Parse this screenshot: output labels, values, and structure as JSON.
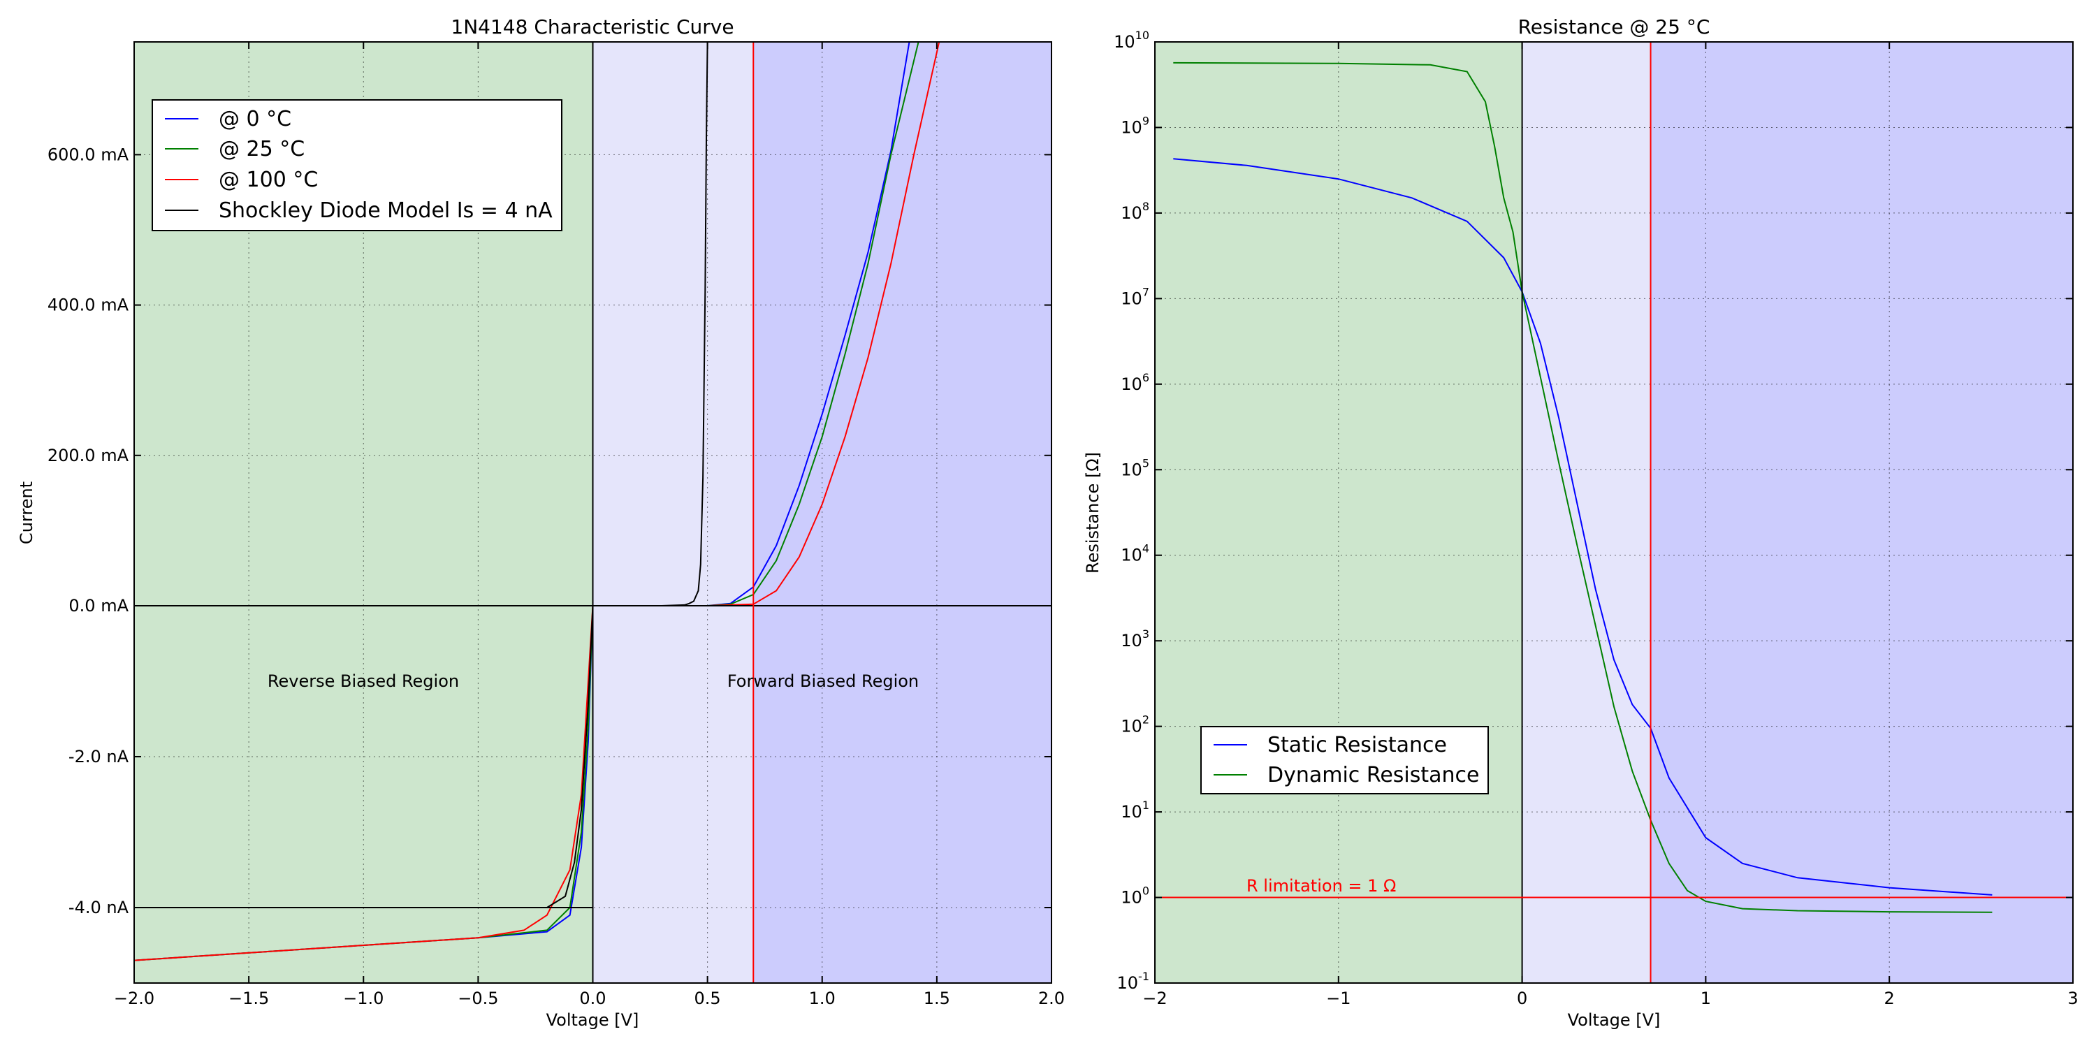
{
  "colors": {
    "blue": "#0000ff",
    "green": "#008000",
    "red": "#ff0000",
    "black": "#000000",
    "green_region": "#cde6cd",
    "lavender_region": "#e5e5fb",
    "blue_region": "#ccccfd"
  },
  "chart_data": [
    {
      "type": "line",
      "title": "1N4148 Characteristic Curve",
      "xlabel": "Voltage [V]",
      "ylabel": "Current",
      "xlim": [
        -2.0,
        2.0
      ],
      "x_ticks": [
        "−2.0",
        "−1.5",
        "−1.0",
        "−0.5",
        "0.0",
        "0.5",
        "1.0",
        "1.5",
        "2.0"
      ],
      "y_ticks": [
        "600.0 mA",
        "400.0 mA",
        "200.0 mA",
        "0.0 mA",
        "-2.0 nA",
        "-4.0 nA"
      ],
      "scale_note": "piecewise y-axis: upper half linear in mA (0 to 750 mA), lower half linear in nA (0 to -5 nA)",
      "grid": true,
      "regions": [
        {
          "from": -2.0,
          "to": 0.0,
          "color": "green_region",
          "label": "Reverse Biased Region"
        },
        {
          "from": 0.0,
          "to": 0.7,
          "color": "lavender_region"
        },
        {
          "from": 0.7,
          "to": 2.0,
          "color": "blue_region",
          "label": "Forward Biased Region"
        }
      ],
      "vlines": [
        {
          "x": 0.0,
          "color": "black"
        },
        {
          "x": 0.7,
          "color": "red"
        }
      ],
      "hlines": [
        {
          "y_nA": -4.0,
          "x_to": 0.0,
          "color": "black"
        }
      ],
      "legend_position": "upper-left",
      "series": [
        {
          "name": "@ 0 °C",
          "color": "blue",
          "forward_mA": [
            [
              0.5,
              0
            ],
            [
              0.6,
              3
            ],
            [
              0.7,
              25
            ],
            [
              0.8,
              80
            ],
            [
              0.9,
              160
            ],
            [
              1.0,
              255
            ],
            [
              1.1,
              360
            ],
            [
              1.2,
              470
            ],
            [
              1.3,
              605
            ],
            [
              1.38,
              750
            ]
          ],
          "reverse_nA": [
            [
              -2.0,
              -4.7
            ],
            [
              -1.5,
              -4.6
            ],
            [
              -1.0,
              -4.5
            ],
            [
              -0.5,
              -4.4
            ],
            [
              -0.2,
              -4.32
            ],
            [
              -0.1,
              -4.1
            ],
            [
              -0.05,
              -3.2
            ],
            [
              -0.02,
              -1.8
            ],
            [
              0.0,
              0.0
            ]
          ]
        },
        {
          "name": "@ 25 °C",
          "color": "green",
          "forward_mA": [
            [
              0.5,
              0
            ],
            [
              0.6,
              2
            ],
            [
              0.7,
              15
            ],
            [
              0.8,
              60
            ],
            [
              0.9,
              135
            ],
            [
              1.0,
              225
            ],
            [
              1.1,
              335
            ],
            [
              1.2,
              455
            ],
            [
              1.3,
              600
            ],
            [
              1.42,
              750
            ]
          ],
          "reverse_nA": [
            [
              -2.0,
              -4.7
            ],
            [
              -1.5,
              -4.6
            ],
            [
              -1.0,
              -4.5
            ],
            [
              -0.5,
              -4.4
            ],
            [
              -0.2,
              -4.3
            ],
            [
              -0.1,
              -4.0
            ],
            [
              -0.05,
              -3.0
            ],
            [
              -0.02,
              -1.6
            ],
            [
              0.0,
              0.0
            ]
          ]
        },
        {
          "name": "@ 100 °C",
          "color": "red",
          "forward_mA": [
            [
              0.5,
              0
            ],
            [
              0.7,
              2
            ],
            [
              0.8,
              20
            ],
            [
              0.9,
              65
            ],
            [
              1.0,
              135
            ],
            [
              1.1,
              225
            ],
            [
              1.2,
              330
            ],
            [
              1.3,
              455
            ],
            [
              1.4,
              600
            ],
            [
              1.51,
              750
            ]
          ],
          "reverse_nA": [
            [
              -2.0,
              -4.7
            ],
            [
              -1.5,
              -4.6
            ],
            [
              -1.0,
              -4.5
            ],
            [
              -0.5,
              -4.4
            ],
            [
              -0.3,
              -4.3
            ],
            [
              -0.2,
              -4.1
            ],
            [
              -0.1,
              -3.5
            ],
            [
              -0.05,
              -2.5
            ],
            [
              0.0,
              0.0
            ]
          ]
        },
        {
          "name": "Shockley Diode Model Is = 4 nA",
          "color": "black",
          "forward_mA": [
            [
              0.0,
              0
            ],
            [
              0.3,
              0
            ],
            [
              0.4,
              1
            ],
            [
              0.42,
              3
            ],
            [
              0.44,
              6
            ],
            [
              0.46,
              20
            ],
            [
              0.47,
              55
            ],
            [
              0.48,
              170
            ],
            [
              0.49,
              420
            ],
            [
              0.495,
              620
            ],
            [
              0.5,
              750
            ]
          ],
          "reverse_nA": [
            [
              -2.0,
              -4.0
            ],
            [
              -1.0,
              -4.0
            ],
            [
              -0.2,
              -4.0
            ],
            [
              -0.12,
              -3.85
            ],
            [
              -0.08,
              -3.4
            ],
            [
              -0.05,
              -2.7
            ],
            [
              -0.02,
              -1.3
            ],
            [
              0.0,
              0.0
            ]
          ]
        }
      ]
    },
    {
      "type": "line",
      "title": "Resistance @ 25 °C",
      "xlabel": "Voltage [V]",
      "ylabel": "Resistance [Ω]",
      "xlim": [
        -2,
        3
      ],
      "ylim": [
        0.1,
        10000000000
      ],
      "yscale": "log",
      "x_ticks": [
        "−2",
        "−1",
        "0",
        "1",
        "2",
        "3"
      ],
      "y_ticks": [
        {
          "base": "10",
          "exp": "10"
        },
        {
          "base": "10",
          "exp": "9"
        },
        {
          "base": "10",
          "exp": "8"
        },
        {
          "base": "10",
          "exp": "7"
        },
        {
          "base": "10",
          "exp": "6"
        },
        {
          "base": "10",
          "exp": "5"
        },
        {
          "base": "10",
          "exp": "4"
        },
        {
          "base": "10",
          "exp": "3"
        },
        {
          "base": "10",
          "exp": "2"
        },
        {
          "base": "10",
          "exp": "1"
        },
        {
          "base": "10",
          "exp": "0"
        },
        {
          "base": "10",
          "exp": "-1"
        }
      ],
      "grid": true,
      "regions": [
        {
          "from": -2,
          "to": 0,
          "color": "green_region"
        },
        {
          "from": 0,
          "to": 0.7,
          "color": "lavender_region"
        },
        {
          "from": 0.7,
          "to": 3,
          "color": "blue_region"
        }
      ],
      "vlines": [
        {
          "x": 0,
          "color": "black"
        },
        {
          "x": 0.7,
          "color": "red"
        }
      ],
      "hlines": [
        {
          "y": 1,
          "color": "red",
          "label": "R limitation = 1 Ω"
        }
      ],
      "legend_position": "lower-left",
      "series": [
        {
          "name": "Static Resistance",
          "color": "blue",
          "points": [
            [
              -1.9,
              430000000.0
            ],
            [
              -1.5,
              360000000.0
            ],
            [
              -1.0,
              250000000.0
            ],
            [
              -0.6,
              150000000.0
            ],
            [
              -0.3,
              80000000.0
            ],
            [
              -0.1,
              30000000.0
            ],
            [
              0.0,
              12000000.0
            ],
            [
              0.1,
              3000000.0
            ],
            [
              0.2,
              400000.0
            ],
            [
              0.3,
              40000.0
            ],
            [
              0.4,
              4000.0
            ],
            [
              0.5,
              600
            ],
            [
              0.6,
              180
            ],
            [
              0.7,
              95
            ],
            [
              0.8,
              25
            ],
            [
              1.0,
              5
            ],
            [
              1.2,
              2.5
            ],
            [
              1.5,
              1.7
            ],
            [
              2.0,
              1.3
            ],
            [
              2.56,
              1.07
            ]
          ]
        },
        {
          "name": "Dynamic Resistance",
          "color": "green",
          "points": [
            [
              -1.9,
              5700000000.0
            ],
            [
              -1.0,
              5600000000.0
            ],
            [
              -0.5,
              5400000000.0
            ],
            [
              -0.3,
              4500000000.0
            ],
            [
              -0.2,
              2000000000.0
            ],
            [
              -0.15,
              600000000.0
            ],
            [
              -0.1,
              150000000.0
            ],
            [
              -0.05,
              60000000.0
            ],
            [
              0.0,
              12000000.0
            ],
            [
              0.1,
              1200000.0
            ],
            [
              0.2,
              120000.0
            ],
            [
              0.3,
              13000.0
            ],
            [
              0.4,
              1500.0
            ],
            [
              0.5,
              170
            ],
            [
              0.6,
              30
            ],
            [
              0.7,
              8
            ],
            [
              0.8,
              2.5
            ],
            [
              0.9,
              1.2
            ],
            [
              1.0,
              0.9
            ],
            [
              1.2,
              0.74
            ],
            [
              1.5,
              0.7
            ],
            [
              2.0,
              0.68
            ],
            [
              2.56,
              0.67
            ]
          ]
        }
      ]
    }
  ]
}
